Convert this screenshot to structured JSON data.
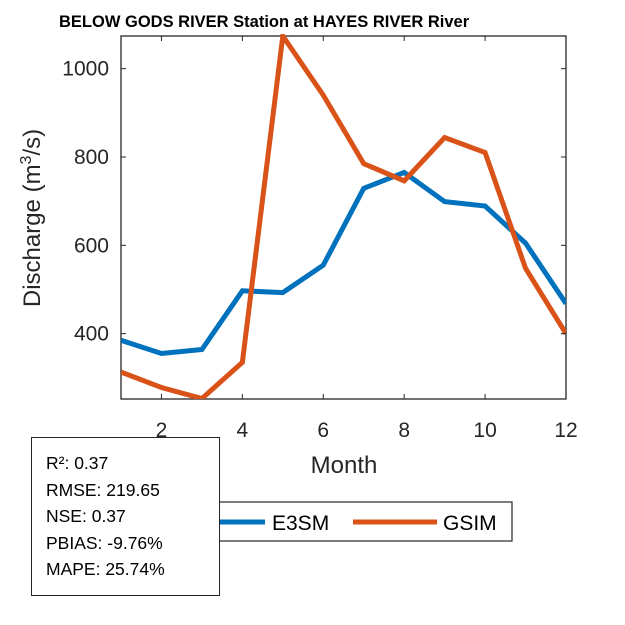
{
  "chart_data": {
    "type": "line",
    "title": "BELOW GODS RIVER  Station at  HAYES RIVER  River",
    "xlabel": "Month",
    "ylabel_main": "Discharge (m",
    "ylabel_sup": "3",
    "ylabel_end": "/s)",
    "xlim": [
      1,
      12
    ],
    "ylim": [
      252,
      1074
    ],
    "xticks": [
      2,
      4,
      6,
      8,
      10,
      12
    ],
    "xtick_labels": [
      "2",
      "4",
      "6",
      "8",
      "10",
      "12"
    ],
    "yticks": [
      400,
      600,
      800,
      1000
    ],
    "ytick_labels": [
      "400",
      "600",
      "800",
      "1000"
    ],
    "grid": false,
    "x": [
      1,
      2,
      3,
      4,
      5,
      6,
      7,
      8,
      9,
      10,
      11,
      12
    ],
    "series": [
      {
        "name": "E3SM",
        "color": "#0072BD",
        "values": [
          385,
          355,
          364,
          497,
          493,
          555,
          729,
          765,
          699,
          689,
          605,
          468
        ]
      },
      {
        "name": "GSIM",
        "color": "#D95319",
        "values": [
          313,
          278,
          253,
          335,
          1074,
          940,
          785,
          746,
          844,
          810,
          548,
          400
        ]
      }
    ],
    "legend_placement": "bottom-center, horizontal"
  },
  "stats": {
    "lines": [
      "R²: 0.37",
      "RMSE: 219.65",
      "NSE: 0.37",
      "PBIAS: -9.76%",
      "MAPE: 25.74%"
    ]
  }
}
